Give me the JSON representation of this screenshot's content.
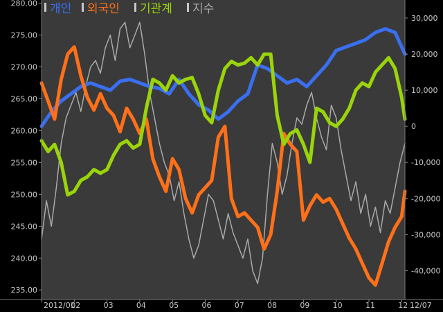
{
  "chart_data": {
    "type": "line",
    "title": "",
    "xlabel": "",
    "ylabel_left": "",
    "ylabel_right": "",
    "grid": false,
    "legend": "top-left",
    "background": "#3a3a3a",
    "months": [
      "2012/01",
      "02",
      "03",
      "04",
      "05",
      "06",
      "07",
      "08",
      "09",
      "10",
      "11",
      "12"
    ],
    "x_end_label": "12/07",
    "x_range": [
      0,
      11.1
    ],
    "y_left": {
      "range": [
        233.5,
        280.5
      ],
      "ticks": [
        280.0,
        275.0,
        270.0,
        265.0,
        260.0,
        255.0,
        250.0,
        245.0,
        240.0,
        235.0
      ],
      "tick_labels": [
        "280.00",
        "275.00",
        "270.00",
        "265.00",
        "260.00",
        "255.00",
        "250.00",
        "245.00",
        "240.00",
        "235.00"
      ]
    },
    "y_right": {
      "range": [
        -48000,
        35000
      ],
      "ticks": [
        30000,
        20000,
        10000,
        0,
        -10000,
        -20000,
        -30000,
        -40000
      ],
      "tick_labels": [
        "30,000",
        "20,000",
        "10,000",
        "0",
        "-10,000",
        "-20,000",
        "-30,000",
        "-40,000"
      ]
    },
    "series": [
      {
        "name": "개인",
        "color": "#3a6ff0",
        "axis": "right",
        "width": 5,
        "x": [
          0,
          0.3,
          0.6,
          0.9,
          1.2,
          1.5,
          1.8,
          2.1,
          2.4,
          2.7,
          3.0,
          3.3,
          3.6,
          3.9,
          4.2,
          4.5,
          4.8,
          5.1,
          5.4,
          5.7,
          6.0,
          6.3,
          6.6,
          6.9,
          7.2,
          7.5,
          7.8,
          8.1,
          8.4,
          8.7,
          9.0,
          9.3,
          9.6,
          9.9,
          10.2,
          10.5,
          10.8,
          11.1
        ],
        "values": [
          0,
          4000,
          7000,
          9000,
          11000,
          12000,
          11000,
          10000,
          12500,
          13000,
          12000,
          11000,
          10500,
          9000,
          13000,
          9000,
          6000,
          4500,
          2000,
          4000,
          7000,
          9000,
          17000,
          16000,
          14000,
          12000,
          13000,
          11000,
          14000,
          17000,
          21000,
          22000,
          23000,
          24000,
          26000,
          27000,
          26000,
          20000
        ]
      },
      {
        "name": "외국인",
        "color": "#ff7018",
        "axis": "right",
        "width": 5,
        "x": [
          0,
          0.2,
          0.4,
          0.6,
          0.8,
          1.0,
          1.2,
          1.4,
          1.6,
          1.8,
          2.0,
          2.2,
          2.4,
          2.6,
          2.8,
          3.0,
          3.2,
          3.4,
          3.6,
          3.8,
          4.0,
          4.2,
          4.4,
          4.6,
          4.8,
          5.0,
          5.2,
          5.4,
          5.6,
          5.8,
          6.0,
          6.2,
          6.4,
          6.6,
          6.8,
          7.0,
          7.2,
          7.4,
          7.6,
          7.8,
          8.0,
          8.2,
          8.4,
          8.6,
          8.8,
          9.0,
          9.2,
          9.4,
          9.6,
          9.8,
          10.0,
          10.2,
          10.4,
          10.6,
          10.8,
          11.0,
          11.1
        ],
        "values": [
          12000,
          7000,
          2000,
          13000,
          20000,
          22000,
          14000,
          8000,
          4500,
          9000,
          5000,
          3000,
          -1500,
          5000,
          2000,
          -2000,
          2000,
          -9000,
          -14000,
          -18000,
          -9000,
          -12000,
          -20000,
          -24000,
          -19000,
          -17000,
          -15000,
          -3000,
          0,
          -20000,
          -25000,
          -24000,
          -26000,
          -28000,
          -34000,
          -30000,
          -18000,
          -2000,
          -5000,
          -7000,
          -26000,
          -22000,
          -19000,
          -21000,
          -20000,
          -23000,
          -27000,
          -31000,
          -34000,
          -38000,
          -42000,
          -44000,
          -38000,
          -32000,
          -28000,
          -25000,
          -18000
        ]
      },
      {
        "name": "기관계",
        "color": "#9ad40a",
        "axis": "right",
        "width": 5,
        "x": [
          0,
          0.2,
          0.4,
          0.6,
          0.8,
          1.0,
          1.2,
          1.4,
          1.6,
          1.8,
          2.0,
          2.2,
          2.4,
          2.6,
          2.8,
          3.0,
          3.2,
          3.4,
          3.6,
          3.8,
          4.0,
          4.2,
          4.4,
          4.6,
          4.8,
          5.0,
          5.2,
          5.4,
          5.6,
          5.8,
          6.0,
          6.2,
          6.4,
          6.6,
          6.8,
          7.0,
          7.2,
          7.4,
          7.6,
          7.8,
          8.0,
          8.2,
          8.4,
          8.6,
          8.8,
          9.0,
          9.2,
          9.4,
          9.6,
          9.8,
          10.0,
          10.2,
          10.4,
          10.6,
          10.8,
          11.0,
          11.1
        ],
        "values": [
          -4000,
          -7000,
          -5000,
          -10000,
          -19000,
          -18000,
          -15000,
          -14000,
          -12000,
          -13000,
          -12000,
          -8000,
          -5000,
          -4000,
          -6000,
          -5000,
          5000,
          13000,
          12000,
          10000,
          14000,
          12000,
          13000,
          13500,
          9000,
          3000,
          1000,
          10000,
          16000,
          18000,
          17000,
          17500,
          19000,
          17000,
          20000,
          20000,
          3000,
          -5000,
          -2000,
          -1000,
          -5000,
          -10000,
          5000,
          4000,
          1000,
          0,
          2000,
          5000,
          10000,
          12000,
          11000,
          15000,
          17000,
          19000,
          16000,
          8000,
          2000
        ]
      },
      {
        "name": "지수",
        "color": "#aaaaaa",
        "axis": "left",
        "width": 1.5,
        "x": [
          0,
          0.15,
          0.3,
          0.45,
          0.6,
          0.75,
          0.9,
          1.05,
          1.2,
          1.35,
          1.5,
          1.65,
          1.8,
          1.95,
          2.1,
          2.25,
          2.4,
          2.55,
          2.7,
          2.85,
          3.0,
          3.15,
          3.3,
          3.45,
          3.6,
          3.75,
          3.9,
          4.05,
          4.2,
          4.35,
          4.5,
          4.65,
          4.8,
          4.95,
          5.1,
          5.25,
          5.4,
          5.55,
          5.7,
          5.85,
          6.0,
          6.15,
          6.3,
          6.45,
          6.6,
          6.75,
          6.9,
          7.05,
          7.2,
          7.35,
          7.5,
          7.65,
          7.8,
          7.95,
          8.1,
          8.25,
          8.4,
          8.55,
          8.7,
          8.85,
          9.0,
          9.15,
          9.3,
          9.45,
          9.6,
          9.75,
          9.9,
          10.05,
          10.2,
          10.35,
          10.5,
          10.65,
          10.8,
          10.95,
          11.1
        ],
        "values": [
          243.0,
          249.0,
          245.0,
          251.0,
          258.0,
          262.0,
          264.0,
          266.0,
          263.0,
          267.0,
          270.0,
          271.0,
          269.0,
          273.0,
          275.0,
          271.0,
          276.0,
          277.0,
          273.0,
          275.0,
          277.0,
          272.0,
          266.0,
          262.0,
          258.0,
          255.0,
          253.0,
          249.0,
          252.0,
          247.0,
          243.0,
          240.0,
          242.0,
          246.0,
          250.0,
          249.0,
          246.0,
          243.0,
          247.0,
          244.0,
          242.0,
          240.0,
          243.0,
          238.0,
          236.0,
          240.0,
          250.0,
          258.0,
          255.0,
          250.0,
          253.0,
          258.0,
          262.0,
          261.0,
          264.0,
          266.0,
          262.0,
          259.0,
          257.0,
          264.0,
          262.0,
          257.0,
          253.0,
          249.0,
          252.0,
          247.0,
          250.0,
          245.0,
          248.0,
          244.0,
          249.0,
          247.0,
          251.0,
          255.0,
          258.0
        ]
      }
    ]
  }
}
